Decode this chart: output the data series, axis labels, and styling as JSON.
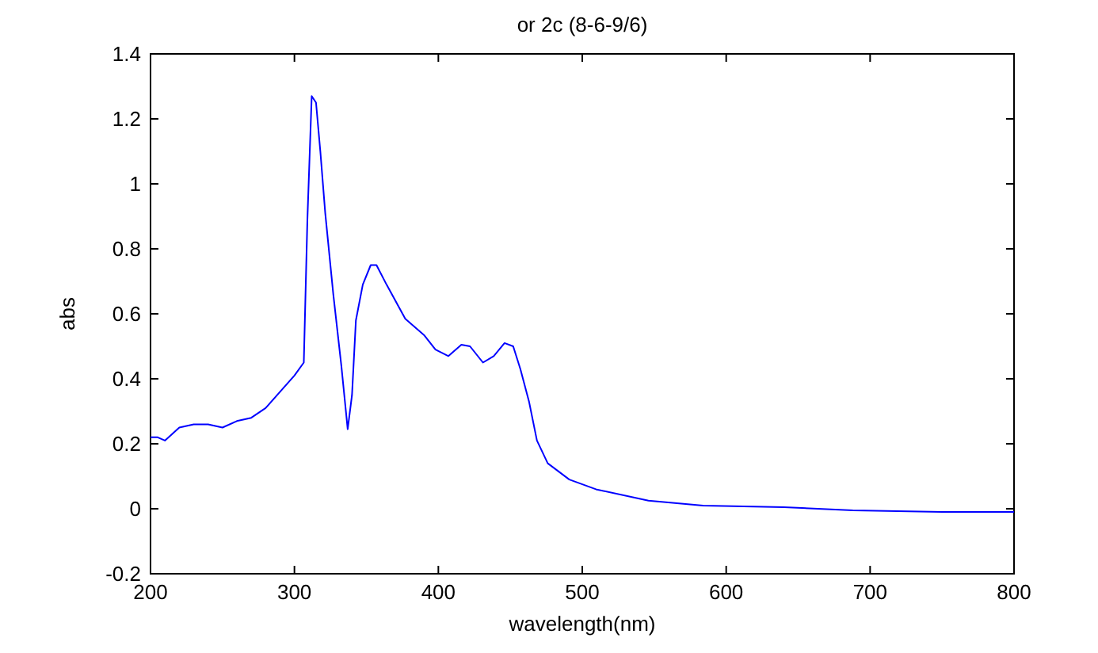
{
  "chart_data": {
    "type": "line",
    "title": "or 2c (8-6-9/6)",
    "xlabel": "wavelength(nm)",
    "ylabel": "abs",
    "x": [
      200,
      205,
      210,
      215,
      220,
      230,
      240,
      250,
      260,
      270,
      280,
      290,
      300,
      306.5,
      309,
      312,
      315,
      318,
      321.4,
      327,
      332.6,
      337,
      340,
      342.7,
      347.5,
      353,
      357,
      364,
      377,
      390,
      398,
      407,
      416,
      422,
      431,
      438.5,
      446,
      452,
      457,
      463,
      468.5,
      476,
      491,
      509.5,
      546,
      584,
      640,
      688,
      750,
      800
    ],
    "series": [
      {
        "color": "#0000ff",
        "values": [
          0.22,
          0.22,
          0.21,
          0.23,
          0.25,
          0.26,
          0.26,
          0.25,
          0.27,
          0.28,
          0.31,
          0.36,
          0.41,
          0.45,
          0.89,
          1.27,
          1.25,
          1.1,
          0.91,
          0.66,
          0.44,
          0.245,
          0.35,
          0.58,
          0.69,
          0.75,
          0.75,
          0.69,
          0.585,
          0.535,
          0.49,
          0.47,
          0.505,
          0.5,
          0.45,
          0.47,
          0.51,
          0.5,
          0.43,
          0.33,
          0.21,
          0.14,
          0.09,
          0.06,
          0.025,
          0.01,
          0.005,
          -0.005,
          -0.01,
          -0.01
        ]
      }
    ],
    "xlim": [
      200,
      800
    ],
    "xticks": [
      200,
      300,
      400,
      500,
      600,
      700,
      800
    ],
    "ylim": [
      -0.2,
      1.4
    ],
    "yticks": [
      -0.2,
      0,
      0.2,
      0.4,
      0.6,
      0.8,
      {
        "value": 1,
        "label": "1"
      },
      1.2,
      1.4
    ],
    "grid": false,
    "line_style": "solid",
    "marker": "none"
  }
}
